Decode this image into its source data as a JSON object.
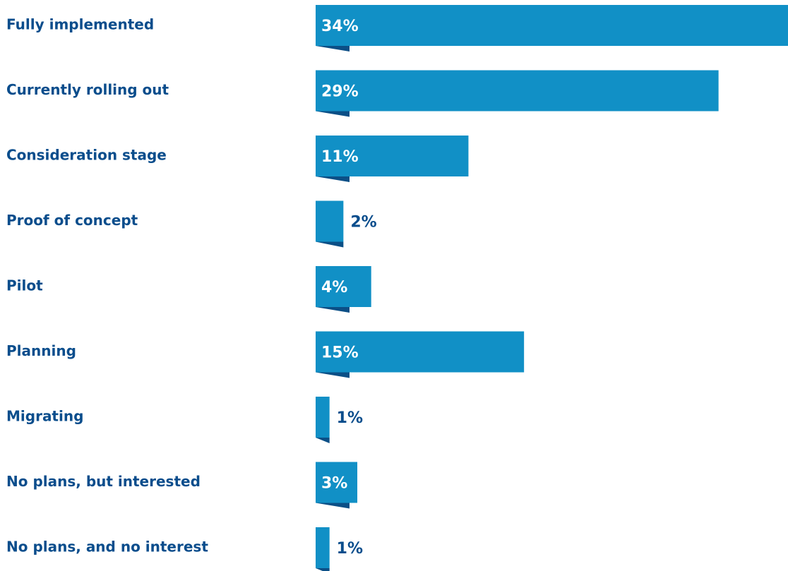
{
  "chart_data": {
    "type": "bar",
    "orientation": "horizontal",
    "categories": [
      "Fully implemented",
      "Currently rolling out",
      "Consideration stage",
      "Proof of concept",
      "Pilot",
      "Planning",
      "Migrating",
      "No plans, but interested",
      "No plans, and no interest"
    ],
    "values": [
      34,
      29,
      11,
      2,
      4,
      15,
      1,
      3,
      1
    ],
    "value_labels": [
      "34%",
      "29%",
      "11%",
      "2%",
      "4%",
      "15%",
      "1%",
      "3%",
      "1%"
    ],
    "title": "",
    "xlabel": "",
    "ylabel": "",
    "xlim": [
      0,
      34
    ],
    "grid": false,
    "legend": "none"
  },
  "colors": {
    "bar": "#1190c6",
    "bar_fold": "#0b4f86",
    "label": "#0a4d8c",
    "value_inside": "#ffffff",
    "value_outside": "#0a4d8c"
  }
}
